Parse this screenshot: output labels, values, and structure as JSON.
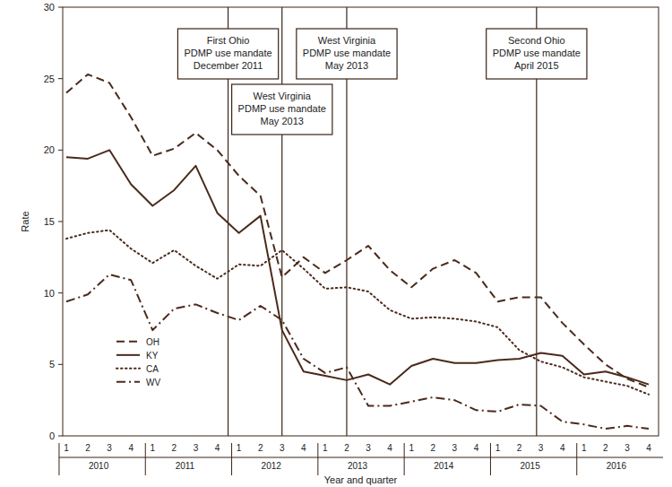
{
  "chart_data": {
    "type": "line",
    "x_label": "Year and quarter",
    "y_label": "Rate",
    "categories": [
      "1",
      "2",
      "3",
      "4",
      "1",
      "2",
      "3",
      "4",
      "1",
      "2",
      "3",
      "4",
      "1",
      "2",
      "3",
      "4",
      "1",
      "2",
      "3",
      "4",
      "1",
      "2",
      "3",
      "4",
      "1",
      "2",
      "3",
      "4"
    ],
    "x_groups": [
      "2010",
      "2011",
      "2012",
      "2013",
      "2014",
      "2015",
      "2016"
    ],
    "ylim": [
      0,
      30
    ],
    "yticks": [
      0,
      5,
      10,
      15,
      20,
      25,
      30
    ],
    "grid": false,
    "legend": "left",
    "series": [
      {
        "name": "OH",
        "color": "#4b2a1c",
        "line_style": "dashed",
        "values": [
          24.0,
          25.3,
          24.7,
          22.3,
          19.6,
          20.1,
          21.2,
          20.0,
          18.2,
          16.8,
          11.1,
          12.5,
          11.4,
          12.3,
          13.3,
          11.6,
          10.4,
          11.7,
          12.3,
          11.4,
          9.4,
          9.7,
          9.7,
          7.9,
          6.4,
          5.0,
          4.0,
          3.4
        ]
      },
      {
        "name": "KY",
        "color": "#4b2a1c",
        "line_style": "solid",
        "values": [
          19.5,
          19.4,
          20.0,
          17.6,
          16.1,
          17.2,
          18.9,
          15.6,
          14.2,
          15.4,
          7.4,
          4.5,
          4.2,
          3.9,
          4.3,
          3.6,
          4.9,
          5.4,
          5.1,
          5.1,
          5.3,
          5.4,
          5.8,
          5.6,
          4.3,
          4.5,
          4.1,
          3.6
        ]
      },
      {
        "name": "CA",
        "color": "#4b2a1c",
        "line_style": "dotted",
        "values": [
          13.8,
          14.2,
          14.4,
          13.1,
          12.1,
          13.0,
          11.9,
          11.0,
          12.0,
          11.9,
          13.0,
          11.7,
          10.3,
          10.4,
          10.1,
          8.8,
          8.2,
          8.3,
          8.2,
          8.0,
          7.6,
          6.0,
          5.2,
          4.8,
          4.1,
          3.8,
          3.5,
          2.9
        ]
      },
      {
        "name": "WV",
        "color": "#4b2a1c",
        "line_style": "dashdot",
        "values": [
          9.4,
          9.9,
          11.3,
          10.9,
          7.4,
          8.9,
          9.2,
          8.6,
          8.1,
          9.1,
          8.1,
          5.4,
          4.4,
          4.8,
          2.1,
          2.1,
          2.4,
          2.7,
          2.5,
          1.8,
          1.7,
          2.2,
          2.1,
          1.0,
          0.8,
          0.5,
          0.7,
          0.5
        ]
      }
    ],
    "annotations": [
      {
        "x": 7.5,
        "lines": [
          "First Ohio",
          "PDMP use mandate",
          "December 2011"
        ]
      },
      {
        "x": 10,
        "lines": [
          "West Virginia",
          "PDMP use mandate",
          "May 2013"
        ]
      },
      {
        "x": 13,
        "lines": [
          "West Virginia",
          "PDMP use mandate",
          "May 2013"
        ]
      },
      {
        "x": 21.8,
        "lines": [
          "Second Ohio",
          "PDMP use mandate",
          "April 2015"
        ]
      }
    ]
  }
}
